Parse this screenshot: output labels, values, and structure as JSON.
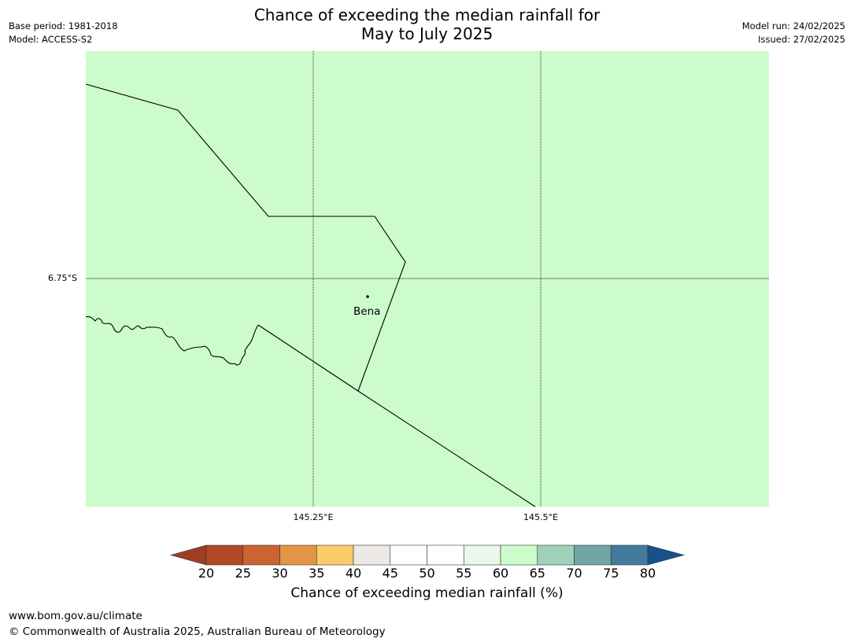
{
  "title": {
    "line1": "Chance of exceeding the median rainfall for",
    "line2": "May to July 2025"
  },
  "meta_left": {
    "base_period": "Base period: 1981-2018",
    "model": "Model: ACCESS-S2"
  },
  "meta_right": {
    "model_run": "Model run: 24/02/2025",
    "issued": "Issued: 27/02/2025"
  },
  "map": {
    "fill_color": "#ccfccc",
    "latitude_labels": [
      "6.75°S"
    ],
    "longitude_labels": [
      "145.25°E",
      "145.5°E"
    ],
    "place": {
      "name": "Bena"
    }
  },
  "colorbar": {
    "ticks": [
      "20",
      "25",
      "30",
      "35",
      "40",
      "45",
      "50",
      "55",
      "60",
      "65",
      "70",
      "75",
      "80"
    ],
    "colors": [
      "#b04a26",
      "#cc6432",
      "#e39546",
      "#fdcb67",
      "#ece8e4",
      "#ffffff",
      "#ffffff",
      "#eaf7ea",
      "#ccfccc",
      "#9ed1b7",
      "#70a6a6",
      "#427b9c"
    ],
    "under_color": "#9e3d23",
    "over_color": "#18508c",
    "label": "Chance of exceeding median rainfall (%)"
  },
  "footer": {
    "url": "www.bom.gov.au/climate",
    "copyright": "© Commonwealth of Australia 2025, Australian Bureau of Meteorology"
  }
}
